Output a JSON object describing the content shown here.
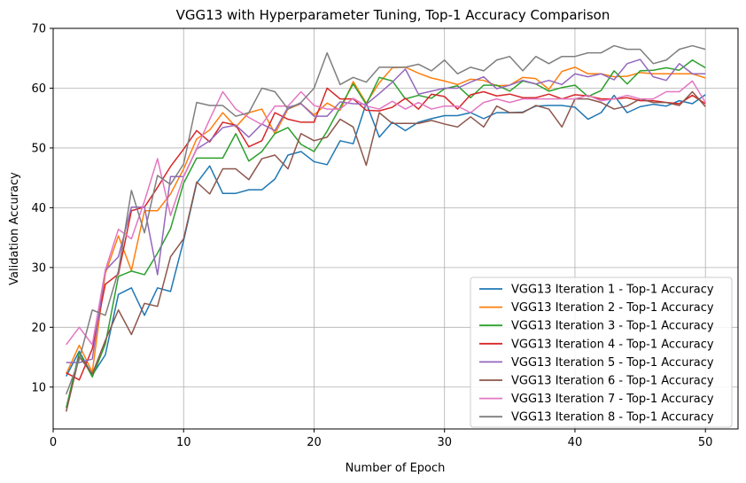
{
  "chart_data": {
    "type": "line",
    "title": "VGG13 with Hyperparameter Tuning, Top-1 Accuracy Comparison",
    "xlabel": "Number of Epoch",
    "ylabel": "Validation Accuracy",
    "xlim": [
      0,
      52.5
    ],
    "ylim": [
      3,
      70
    ],
    "xticks": [
      0,
      10,
      20,
      30,
      40,
      50
    ],
    "yticks": [
      10,
      20,
      30,
      40,
      50,
      60,
      70
    ],
    "grid": true,
    "legend_position": "bottom-right",
    "x": [
      1,
      2,
      3,
      4,
      5,
      6,
      7,
      8,
      9,
      10,
      11,
      12,
      13,
      14,
      15,
      16,
      17,
      18,
      19,
      20,
      21,
      22,
      23,
      24,
      25,
      26,
      27,
      28,
      29,
      30,
      31,
      32,
      33,
      34,
      35,
      36,
      37,
      38,
      39,
      40,
      41,
      42,
      43,
      44,
      45,
      46,
      47,
      48,
      49,
      50
    ],
    "series": [
      {
        "name": "VGG13 Iteration 1 - Top-1 Accuracy",
        "color": "#1f77b4",
        "values": [
          11.8,
          16.0,
          12.0,
          15.4,
          25.5,
          26.6,
          22.0,
          26.6,
          26.0,
          34.5,
          44.1,
          47.0,
          42.4,
          42.4,
          43.0,
          43.0,
          44.8,
          48.8,
          49.4,
          47.7,
          47.2,
          51.2,
          50.7,
          57.5,
          51.8,
          54.3,
          52.9,
          54.3,
          54.9,
          55.4,
          55.4,
          55.9,
          54.9,
          55.9,
          55.9,
          56.0,
          57.0,
          57.1,
          57.1,
          56.8,
          54.8,
          55.9,
          58.8,
          55.9,
          56.9,
          57.3,
          57.0,
          57.9,
          57.4,
          58.9
        ]
      },
      {
        "name": "VGG13 Iteration 2 - Top-1 Accuracy",
        "color": "#ff7f0e",
        "values": [
          12.2,
          17.0,
          12.5,
          29.0,
          35.3,
          29.5,
          39.5,
          39.5,
          42.3,
          46.5,
          51.5,
          53.0,
          55.9,
          53.5,
          55.9,
          56.5,
          52.4,
          56.5,
          57.4,
          55.5,
          57.5,
          56.3,
          61.1,
          57.5,
          60.9,
          63.4,
          63.5,
          62.5,
          61.7,
          61.2,
          60.6,
          61.5,
          61.3,
          60.4,
          60.5,
          61.8,
          61.6,
          59.8,
          62.8,
          63.5,
          62.4,
          62.4,
          61.9,
          62.0,
          62.6,
          62.4,
          62.4,
          62.4,
          62.4,
          61.7
        ]
      },
      {
        "name": "VGG13 Iteration 3 - Top-1 Accuracy",
        "color": "#2ca02c",
        "values": [
          6.5,
          15.8,
          11.7,
          17.2,
          28.5,
          29.4,
          28.8,
          32.4,
          36.5,
          44.1,
          48.3,
          48.3,
          48.3,
          52.4,
          47.8,
          49.4,
          52.4,
          53.4,
          50.6,
          49.4,
          52.8,
          56.8,
          60.7,
          57.3,
          61.8,
          61.2,
          58.2,
          58.8,
          58.3,
          59.9,
          60.4,
          58.4,
          60.5,
          60.5,
          59.5,
          61.2,
          60.7,
          59.5,
          60.1,
          60.5,
          58.6,
          59.6,
          62.9,
          60.7,
          62.9,
          63.0,
          63.4,
          63.0,
          64.7,
          63.4
        ]
      },
      {
        "name": "VGG13 Iteration 4 - Top-1 Accuracy",
        "color": "#d62728",
        "values": [
          12.4,
          11.2,
          16.4,
          27.2,
          28.9,
          39.5,
          40.1,
          43.4,
          46.9,
          49.8,
          52.9,
          51.0,
          54.3,
          53.8,
          50.2,
          51.2,
          55.9,
          54.8,
          54.3,
          54.3,
          60.0,
          58.2,
          58.2,
          56.3,
          56.2,
          56.8,
          58.3,
          56.5,
          59.0,
          58.6,
          56.5,
          58.9,
          59.4,
          58.7,
          59.0,
          58.4,
          58.4,
          59.0,
          58.2,
          58.9,
          58.7,
          58.2,
          58.2,
          58.4,
          57.9,
          57.9,
          57.6,
          57.4,
          58.8,
          57.4
        ]
      },
      {
        "name": "VGG13 Iteration 5 - Top-1 Accuracy",
        "color": "#9467bd",
        "values": [
          14.1,
          14.1,
          14.7,
          29.5,
          31.8,
          40.1,
          40.1,
          28.8,
          45.2,
          45.2,
          49.8,
          51.2,
          53.4,
          53.8,
          51.8,
          54.0,
          52.9,
          56.8,
          57.4,
          55.3,
          55.3,
          57.7,
          57.4,
          57.3,
          59.1,
          61.0,
          63.2,
          59.0,
          59.5,
          60.0,
          60.0,
          61.0,
          61.9,
          59.9,
          60.5,
          61.3,
          60.7,
          61.3,
          60.6,
          62.4,
          61.9,
          62.4,
          61.4,
          64.1,
          64.8,
          61.9,
          61.3,
          64.1,
          62.4,
          62.4
        ]
      },
      {
        "name": "VGG13 Iteration 6 - Top-1 Accuracy",
        "color": "#8c564b",
        "values": [
          5.9,
          15.1,
          12.2,
          17.8,
          22.9,
          18.8,
          24.0,
          23.5,
          31.8,
          34.8,
          44.3,
          42.3,
          46.5,
          46.5,
          44.7,
          48.2,
          48.8,
          46.5,
          52.4,
          51.2,
          51.8,
          54.8,
          53.5,
          47.1,
          55.9,
          54.1,
          54.1,
          54.1,
          54.6,
          54.0,
          53.5,
          55.2,
          53.5,
          57.0,
          55.9,
          55.9,
          57.1,
          56.5,
          53.5,
          58.2,
          58.2,
          57.6,
          56.5,
          57.0,
          58.2,
          57.6,
          57.6,
          57.1,
          59.4,
          56.9
        ]
      },
      {
        "name": "VGG13 Iteration 7 - Top-1 Accuracy",
        "color": "#e377c2",
        "values": [
          17.1,
          20.0,
          17.1,
          29.6,
          36.4,
          34.8,
          41.1,
          48.2,
          38.7,
          45.2,
          49.9,
          54.8,
          59.4,
          56.5,
          55.1,
          53.9,
          57.0,
          57.0,
          59.4,
          57.1,
          56.5,
          56.5,
          58.3,
          57.0,
          56.5,
          57.8,
          56.5,
          57.6,
          56.5,
          57.0,
          57.0,
          55.9,
          57.6,
          58.2,
          57.6,
          58.2,
          58.2,
          58.2,
          58.2,
          58.2,
          58.8,
          57.9,
          58.2,
          58.8,
          58.2,
          58.2,
          59.4,
          59.4,
          61.2,
          57.6
        ]
      },
      {
        "name": "VGG13 Iteration 8 - Top-1 Accuracy",
        "color": "#7f7f7f",
        "values": [
          8.8,
          14.6,
          22.9,
          22.0,
          29.4,
          42.9,
          35.8,
          45.4,
          43.9,
          47.3,
          57.6,
          57.1,
          57.1,
          55.3,
          55.9,
          60.0,
          59.4,
          56.5,
          57.6,
          60.0,
          65.9,
          60.6,
          61.8,
          61.0,
          63.5,
          63.5,
          63.5,
          64.0,
          62.9,
          64.7,
          62.4,
          63.5,
          62.9,
          64.7,
          65.3,
          62.9,
          65.3,
          64.1,
          65.3,
          65.3,
          65.9,
          65.9,
          67.1,
          66.5,
          66.5,
          64.1,
          64.7,
          66.5,
          67.1,
          66.5
        ]
      }
    ]
  }
}
